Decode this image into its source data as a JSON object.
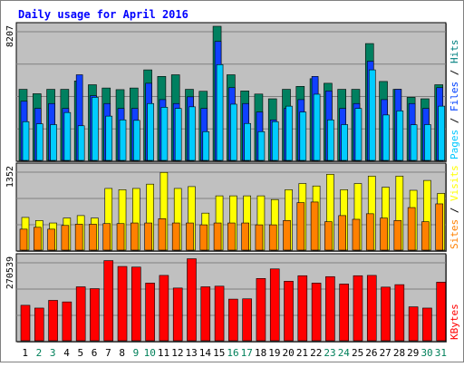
{
  "chart_data": [
    {
      "type": "bar",
      "title": "Daily usage for April 2016",
      "categories": [
        "1",
        "2",
        "3",
        "4",
        "5",
        "6",
        "7",
        "8",
        "9",
        "10",
        "11",
        "12",
        "13",
        "14",
        "15",
        "16",
        "17",
        "18",
        "19",
        "20",
        "21",
        "22",
        "23",
        "24",
        "25",
        "26",
        "27",
        "28",
        "29",
        "30",
        "31"
      ],
      "weekend_days": [
        "2",
        "3",
        "9",
        "10",
        "16",
        "17",
        "23",
        "24",
        "30",
        "31"
      ],
      "ymax_label": "8207",
      "ylim": [
        0,
        8207
      ],
      "legend": [
        {
          "name": "Pages",
          "color": "#00c8ff"
        },
        {
          "name": "Files",
          "color": "#0040ff"
        },
        {
          "name": "Hits",
          "color": "#008080"
        }
      ],
      "series": [
        {
          "name": "Hits",
          "color": "#008060",
          "values": [
            4350,
            4080,
            4350,
            4350,
            4860,
            4630,
            4430,
            4330,
            4430,
            5540,
            5140,
            5240,
            4350,
            4230,
            8207,
            5240,
            4250,
            4060,
            3770,
            4350,
            4530,
            5000,
            4720,
            4350,
            4350,
            7150,
            4830,
            4350,
            3860,
            3770,
            4630
          ]
        },
        {
          "name": "Files",
          "color": "#1040ff",
          "values": [
            3620,
            3180,
            3480,
            3180,
            5240,
            3960,
            3480,
            3180,
            3180,
            4720,
            3720,
            3480,
            3890,
            3180,
            7280,
            4450,
            3480,
            2960,
            2480,
            3180,
            3720,
            5140,
            4250,
            3180,
            3480,
            6070,
            3720,
            4350,
            3480,
            3180,
            4450
          ]
        },
        {
          "name": "Pages",
          "color": "#00ccff",
          "values": [
            2370,
            2240,
            2190,
            2930,
            2120,
            3860,
            2710,
            2480,
            2450,
            3480,
            3250,
            3180,
            3280,
            1760,
            5860,
            3440,
            2260,
            1760,
            2370,
            3320,
            2960,
            4050,
            2480,
            2190,
            3180,
            5540,
            2780,
            3030,
            2180,
            2190,
            3320
          ]
        }
      ]
    },
    {
      "type": "bar",
      "ymax_label": "1352",
      "ylim": [
        0,
        1352
      ],
      "legend": [
        {
          "name": "Sites",
          "color": "#ff8000"
        },
        {
          "name": "Visits",
          "color": "#ffff00"
        }
      ],
      "series": [
        {
          "name": "Visits",
          "color": "#ffff00",
          "values": [
            530,
            480,
            440,
            520,
            560,
            520,
            1000,
            980,
            1000,
            1070,
            1260,
            1000,
            1030,
            600,
            880,
            880,
            880,
            880,
            820,
            980,
            1080,
            1040,
            1230,
            980,
            1080,
            1200,
            1020,
            1200,
            970,
            1130,
            920
          ]
        },
        {
          "name": "Sites",
          "color": "#ff8000",
          "values": [
            340,
            370,
            340,
            400,
            420,
            420,
            430,
            430,
            440,
            440,
            510,
            440,
            440,
            410,
            440,
            440,
            440,
            410,
            410,
            480,
            770,
            780,
            460,
            560,
            500,
            590,
            520,
            480,
            690,
            460,
            750
          ]
        }
      ]
    },
    {
      "type": "bar",
      "ymax_label": "270539",
      "ylim": [
        0,
        270539
      ],
      "legend": [
        {
          "name": "KBytes",
          "color": "#ff0000"
        }
      ],
      "series": [
        {
          "name": "KBytes",
          "color": "#ff0000",
          "values": [
            115000,
            106000,
            131000,
            126000,
            175000,
            169000,
            260000,
            241000,
            239000,
            187000,
            212000,
            171000,
            266000,
            175000,
            177000,
            135000,
            136000,
            202000,
            233000,
            193000,
            211000,
            187000,
            208000,
            184000,
            211000,
            212000,
            174000,
            182000,
            110000,
            106000,
            190000
          ]
        }
      ]
    }
  ],
  "colors": {
    "title": "#0000ff",
    "weekday_label": "#000000",
    "weekend_label": "#00805a",
    "panel_background": "#c0c0c0",
    "grid": "#808080"
  }
}
